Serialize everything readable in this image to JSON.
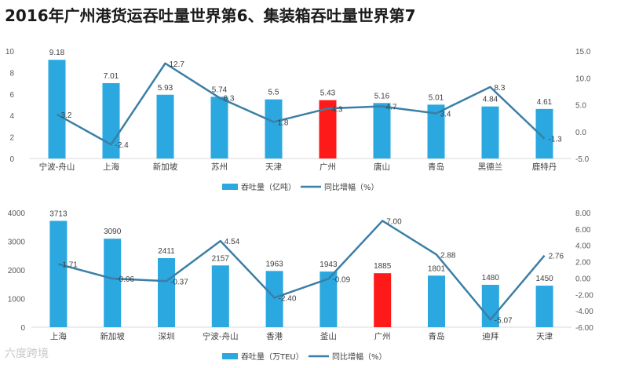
{
  "title": "2016年广州港货运吞吐量世界第6、集装箱吞吐量世界第7",
  "watermark": "六度跨境",
  "colors": {
    "bar": "#2aa8df",
    "highlight_bar": "#ff1a1a",
    "line": "#3b7fa6",
    "axis_text": "#595959",
    "grid": "#d9d9d9"
  },
  "chart_data": [
    {
      "type": "bar",
      "categories": [
        "宁波-舟山",
        "上海",
        "新加坡",
        "苏州",
        "天津",
        "广州",
        "唐山",
        "青岛",
        "黑德兰",
        "鹿特丹"
      ],
      "highlight_category": "广州",
      "series": [
        {
          "name": "吞吐量（亿吨）",
          "type": "bar",
          "axis": "left",
          "values": [
            9.18,
            7.01,
            5.93,
            5.74,
            5.5,
            5.43,
            5.16,
            5.01,
            4.84,
            4.61
          ],
          "labels": [
            "9.18",
            "7.01",
            "5.93",
            "5.74",
            "5.5",
            "5.43",
            "5.16",
            "5.01",
            "4.84",
            "4.61"
          ]
        },
        {
          "name": "同比增幅（%）",
          "type": "line",
          "axis": "right",
          "values": [
            3.2,
            -2.4,
            12.7,
            6.3,
            1.8,
            4.3,
            4.7,
            3.4,
            8.3,
            -1.3
          ],
          "labels": [
            "3.2",
            "-2.4",
            "12.7",
            "6.3",
            "1.8",
            "4.3",
            "4.7",
            "3.4",
            "8.3",
            "-1.3"
          ]
        }
      ],
      "left_axis": {
        "min": 0,
        "max": 10,
        "ticks": [
          "0",
          "2",
          "4",
          "6",
          "8",
          "10"
        ]
      },
      "right_axis": {
        "min": -5,
        "max": 15,
        "ticks": [
          "-5.0",
          "0.0",
          "5.0",
          "10.0",
          "15.0"
        ]
      },
      "grid": false,
      "legend_position": "bottom"
    },
    {
      "type": "bar",
      "categories": [
        "上海",
        "新加坡",
        "深圳",
        "宁波-舟山",
        "香港",
        "釜山",
        "广州",
        "青岛",
        "迪拜",
        "天津"
      ],
      "highlight_category": "广州",
      "series": [
        {
          "name": "吞吐量（万TEU）",
          "type": "bar",
          "axis": "left",
          "values": [
            3713,
            3090,
            2411,
            2157,
            1963,
            1943,
            1885,
            1801,
            1480,
            1450
          ],
          "labels": [
            "3713",
            "3090",
            "2411",
            "2157",
            "1963",
            "1943",
            "1885",
            "1801",
            "1480",
            "1450"
          ]
        },
        {
          "name": "同比增幅（%）",
          "type": "line",
          "axis": "right",
          "values": [
            1.71,
            -0.06,
            -0.37,
            4.54,
            -2.4,
            -0.09,
            7.0,
            2.88,
            -5.07,
            2.76
          ],
          "labels": [
            "1.71",
            "-0.06",
            "-0.37",
            "4.54",
            "-2.40",
            "-0.09",
            "7.00",
            "2.88",
            "-5.07",
            "2.76"
          ]
        }
      ],
      "left_axis": {
        "min": 0,
        "max": 4000,
        "ticks": [
          "0",
          "1000",
          "2000",
          "3000",
          "4000"
        ]
      },
      "right_axis": {
        "min": -6,
        "max": 8,
        "ticks": [
          "-6.00",
          "-4.00",
          "-2.00",
          "0.00",
          "2.00",
          "4.00",
          "6.00",
          "8.00"
        ]
      },
      "grid": false,
      "legend_position": "bottom"
    }
  ]
}
